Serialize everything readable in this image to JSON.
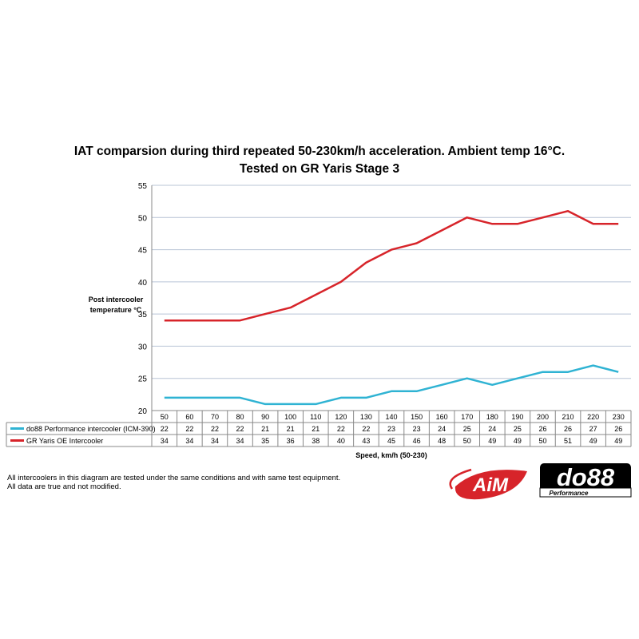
{
  "title_lines": [
    "IAT comparsion during third repeated 50-230km/h acceleration. Ambient temp 16°C.",
    "Tested on GR Yaris Stage 3"
  ],
  "notes": [
    "All intercoolers in this diagram are tested under the same conditions and with same test equipment.",
    "All data are true and not modified."
  ],
  "logos": {
    "aim": "AiM",
    "do88": "do88",
    "do88_sub": "Performance"
  },
  "colors": {
    "series_a": "#2fb3d3",
    "series_b": "#d7242a",
    "grid": "#b9c4d6",
    "axis": "#888888"
  },
  "chart_data": {
    "type": "line",
    "title": "IAT comparsion during third repeated 50-230km/h acceleration. Ambient temp 16°C. Tested on GR Yaris Stage 3",
    "ylabel": "Post intercooler temperature °C",
    "xlabel": "Speed, km/h (50-230)",
    "ylim": [
      20,
      55
    ],
    "yticks": [
      20,
      25,
      30,
      35,
      40,
      45,
      50,
      55
    ],
    "grid": true,
    "legend": "data-table",
    "x": [
      50,
      60,
      70,
      80,
      90,
      100,
      110,
      120,
      130,
      140,
      150,
      160,
      170,
      180,
      190,
      200,
      210,
      220,
      230
    ],
    "series": [
      {
        "name": "do88 Performance intercooler (ICM-390)",
        "values": [
          22,
          22,
          22,
          22,
          21,
          21,
          21,
          22,
          22,
          23,
          23,
          24,
          25,
          24,
          25,
          26,
          26,
          27,
          26
        ]
      },
      {
        "name": "GR Yaris OE Intercooler",
        "values": [
          34,
          34,
          34,
          34,
          35,
          36,
          38,
          40,
          43,
          45,
          46,
          48,
          50,
          49,
          49,
          50,
          51,
          49,
          49
        ]
      }
    ]
  }
}
